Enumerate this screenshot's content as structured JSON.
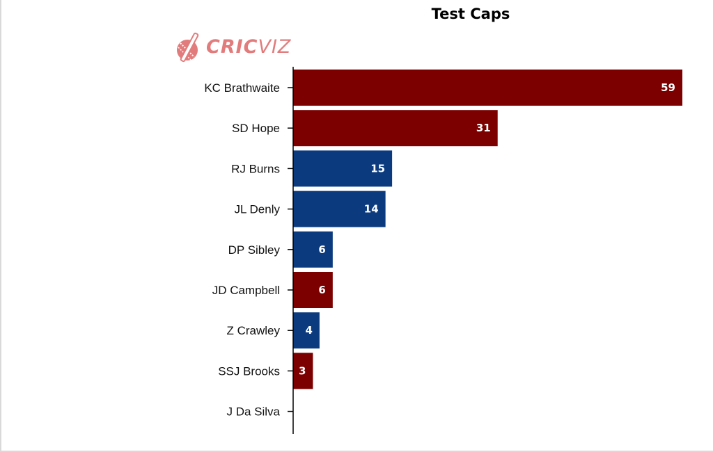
{
  "colors": {
    "west_indies": "#7c0000",
    "england": "#0b3a7e",
    "axis": "#000000",
    "logo": "#e27c7c"
  },
  "logo": {
    "brand_bold": "CRIC",
    "brand_light": "VIZ"
  },
  "chart_data": {
    "type": "bar",
    "orientation": "horizontal",
    "title": "Test Caps",
    "xlabel": "",
    "ylabel": "",
    "xlim": [
      0,
      60
    ],
    "grid": false,
    "legend": "none",
    "categories": [
      "KC Brathwaite",
      "SD Hope",
      "RJ Burns",
      "JL Denly",
      "DP Sibley",
      "JD Campbell",
      "Z Crawley",
      "SSJ Brooks",
      "J Da Silva"
    ],
    "values": [
      59,
      31,
      15,
      14,
      6,
      6,
      4,
      3,
      0
    ],
    "bar_colors": [
      "#7c0000",
      "#7c0000",
      "#0b3a7e",
      "#0b3a7e",
      "#0b3a7e",
      "#7c0000",
      "#0b3a7e",
      "#7c0000",
      "#7c0000"
    ]
  }
}
